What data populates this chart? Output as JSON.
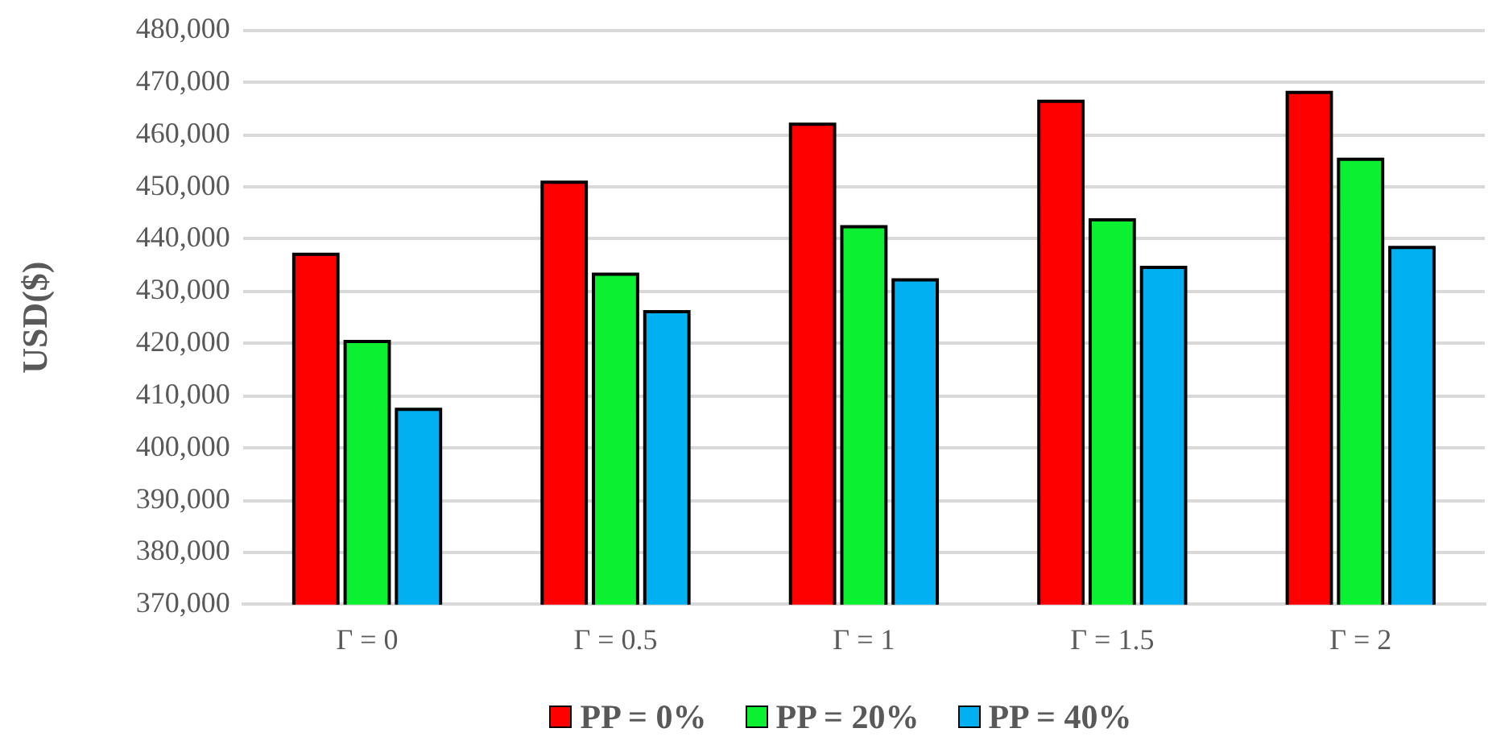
{
  "chart_data": {
    "type": "bar",
    "ylabel": "USD($)",
    "categories": [
      "Γ = 0",
      "Γ = 0.5",
      "Γ = 1",
      "Γ = 1.5",
      "Γ = 2"
    ],
    "series": [
      {
        "name": "PP = 0%",
        "color": "#ff0000",
        "values": [
          437100,
          450900,
          462000,
          466400,
          468100
        ]
      },
      {
        "name": "PP = 20%",
        "color": "#0cf032",
        "values": [
          420400,
          433300,
          442400,
          443700,
          455300
        ]
      },
      {
        "name": "PP = 40%",
        "color": "#00b0f0",
        "values": [
          407400,
          426100,
          432200,
          434600,
          438400
        ]
      }
    ],
    "ylim": [
      370000,
      480000
    ],
    "yticks": [
      {
        "value": 370000,
        "label": "370,000"
      },
      {
        "value": 380000,
        "label": "380,000"
      },
      {
        "value": 390000,
        "label": "390,000"
      },
      {
        "value": 400000,
        "label": "400,000"
      },
      {
        "value": 410000,
        "label": "410,000"
      },
      {
        "value": 420000,
        "label": "420,000"
      },
      {
        "value": 430000,
        "label": "430,000"
      },
      {
        "value": 440000,
        "label": "440,000"
      },
      {
        "value": 450000,
        "label": "450,000"
      },
      {
        "value": 460000,
        "label": "460,000"
      },
      {
        "value": 470000,
        "label": "470,000"
      },
      {
        "value": 480000,
        "label": "480,000"
      }
    ],
    "grid": "y",
    "legend": "bottom"
  }
}
